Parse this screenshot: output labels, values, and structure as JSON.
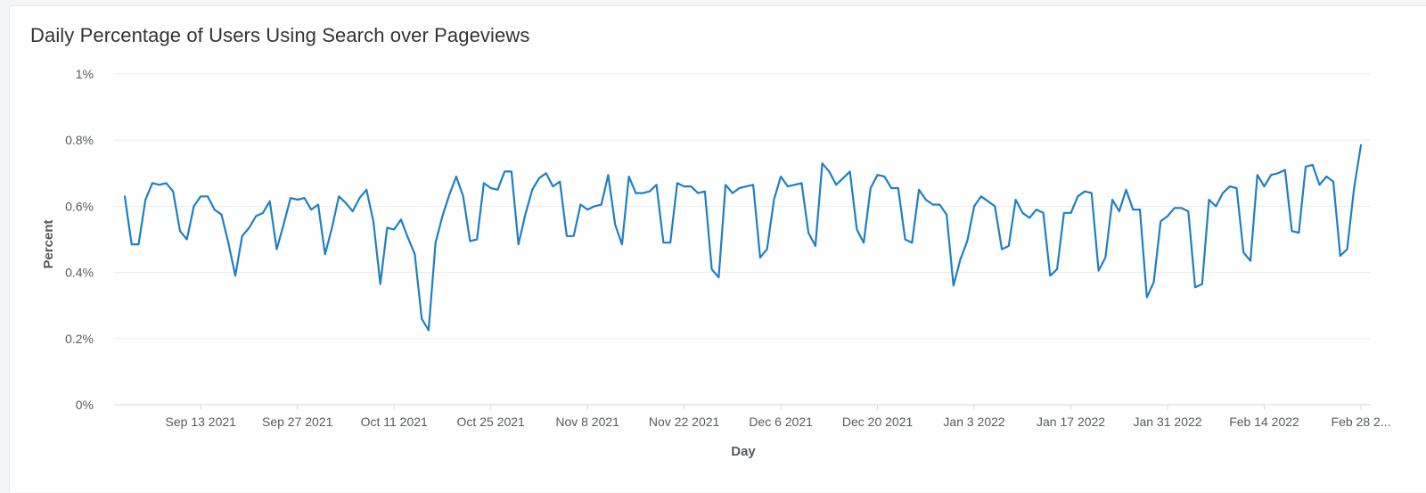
{
  "colors": {
    "line": "#1f7fc4",
    "grid": "#ececef",
    "axis": "#d4d7dc"
  },
  "chart_data": {
    "type": "line",
    "title": "Daily Percentage of Users Using Search over Pageviews",
    "xlabel": "Day",
    "ylabel": "Percent",
    "ylim": [
      0,
      1
    ],
    "y_ticks": [
      "0%",
      "0.2%",
      "0.4%",
      "0.6%",
      "0.8%",
      "1%"
    ],
    "x_ticks": [
      "Sep 13 2021",
      "Sep 27 2021",
      "Oct 11 2021",
      "Oct 25 2021",
      "Nov 8 2021",
      "Nov 22 2021",
      "Dec 6 2021",
      "Dec 20 2021",
      "Jan 3 2022",
      "Jan 17 2022",
      "Jan 31 2022",
      "Feb 14 2022",
      "Feb 28 2..."
    ],
    "grid": true,
    "x_start": "2021-09-02",
    "x_end": "2022-03-03",
    "series": [
      {
        "values": [
          0.63,
          0.485,
          0.485,
          0.62,
          0.67,
          0.665,
          0.67,
          0.645,
          0.525,
          0.5,
          0.6,
          0.63,
          0.63,
          0.59,
          0.575,
          0.49,
          0.39,
          0.51,
          0.535,
          0.57,
          0.58,
          0.615,
          0.47,
          0.545,
          0.625,
          0.62,
          0.625,
          0.59,
          0.605,
          0.455,
          0.535,
          0.63,
          0.61,
          0.585,
          0.625,
          0.65,
          0.555,
          0.365,
          0.535,
          0.53,
          0.56,
          0.505,
          0.455,
          0.26,
          0.225,
          0.49,
          0.57,
          0.635,
          0.69,
          0.63,
          0.495,
          0.5,
          0.67,
          0.655,
          0.65,
          0.705,
          0.705,
          0.485,
          0.575,
          0.65,
          0.685,
          0.7,
          0.66,
          0.675,
          0.51,
          0.51,
          0.605,
          0.59,
          0.6,
          0.605,
          0.695,
          0.545,
          0.485,
          0.69,
          0.64,
          0.64,
          0.645,
          0.665,
          0.49,
          0.49,
          0.67,
          0.66,
          0.66,
          0.64,
          0.645,
          0.41,
          0.385,
          0.665,
          0.64,
          0.655,
          0.66,
          0.665,
          0.445,
          0.47,
          0.62,
          0.69,
          0.66,
          0.665,
          0.67,
          0.52,
          0.48,
          0.73,
          0.705,
          0.665,
          0.685,
          0.705,
          0.53,
          0.49,
          0.655,
          0.695,
          0.69,
          0.655,
          0.655,
          0.5,
          0.49,
          0.65,
          0.62,
          0.605,
          0.605,
          0.575,
          0.36,
          0.44,
          0.495,
          0.6,
          0.63,
          0.615,
          0.6,
          0.47,
          0.48,
          0.62,
          0.58,
          0.565,
          0.59,
          0.58,
          0.39,
          0.41,
          0.58,
          0.58,
          0.63,
          0.645,
          0.64,
          0.405,
          0.445,
          0.62,
          0.585,
          0.65,
          0.59,
          0.59,
          0.325,
          0.37,
          0.555,
          0.57,
          0.595,
          0.595,
          0.585,
          0.355,
          0.365,
          0.62,
          0.6,
          0.64,
          0.66,
          0.655,
          0.46,
          0.435,
          0.695,
          0.66,
          0.695,
          0.7,
          0.71,
          0.525,
          0.52,
          0.72,
          0.725,
          0.665,
          0.69,
          0.675,
          0.45,
          0.47,
          0.655,
          0.785
        ]
      }
    ]
  }
}
